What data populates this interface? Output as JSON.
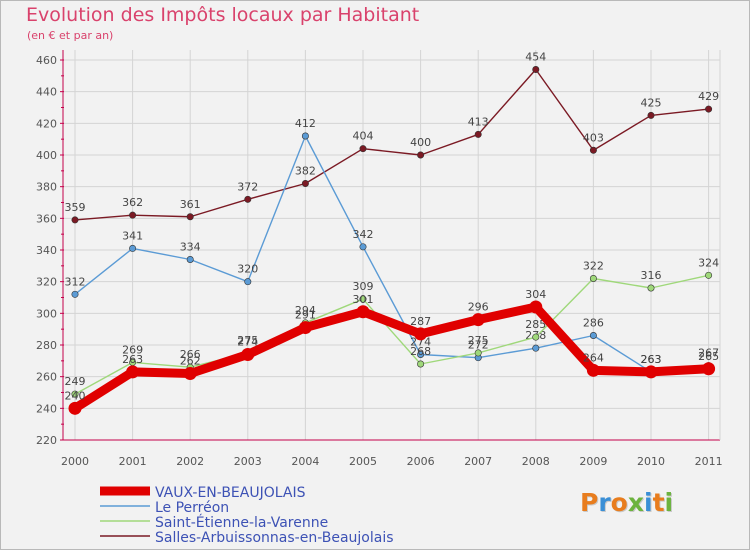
{
  "chart_data": {
    "type": "line",
    "title": "Evolution des Impôts locaux par Habitant",
    "subtitle": "(en € et par an)",
    "xlabel": "",
    "ylabel": "",
    "ylim": [
      220,
      460
    ],
    "yticks": [
      "220",
      "240",
      "260",
      "280",
      "300",
      "320",
      "340",
      "360",
      "380",
      "400",
      "420",
      "440",
      "460"
    ],
    "categories": [
      "2000",
      "2001",
      "2002",
      "2003",
      "2004",
      "2005",
      "2006",
      "2007",
      "2008",
      "2009",
      "2010",
      "2011"
    ],
    "grid": true,
    "legend_position": "bottom-left",
    "series": [
      {
        "name": "Salles-Arbuissonnas-en-Beaujolais",
        "color": "#7b1a24",
        "values": [
          359,
          362,
          361,
          372,
          382,
          404,
          400,
          413,
          454,
          403,
          425,
          429
        ],
        "labels": [
          "359",
          "362",
          "361",
          "372",
          "382",
          "404",
          "400",
          "413",
          "454",
          "403",
          "425",
          "429"
        ]
      },
      {
        "name": "Le Perréon",
        "color": "#5b9bd5",
        "values": [
          312,
          341,
          334,
          320,
          412,
          342,
          274,
          272,
          278,
          286,
          263,
          267
        ],
        "labels": [
          "312",
          "341",
          "334",
          "320",
          "412",
          "342",
          "274",
          "272",
          "278",
          "286",
          "263",
          "267"
        ]
      },
      {
        "name": "Saint-Étienne-la-Varenne",
        "color": "#9fd87a",
        "values": [
          249,
          269,
          266,
          275,
          294,
          309,
          268,
          275,
          285,
          322,
          316,
          324
        ],
        "labels": [
          "249",
          "269",
          "266",
          "275",
          "294",
          "309",
          "268",
          "275",
          "285",
          "322",
          "316",
          "324"
        ]
      },
      {
        "name": "VAUX-EN-BEAUJOLAIS",
        "color": "#e00000",
        "values": [
          240,
          263,
          262,
          274,
          291,
          301,
          287,
          296,
          304,
          264,
          263,
          265
        ],
        "labels": [
          "240",
          "263",
          "262",
          "274",
          "291",
          "301",
          "287",
          "296",
          "304",
          "264",
          "263",
          "265"
        ]
      }
    ],
    "legend": [
      {
        "name": "VAUX-EN-BEAUJOLAIS",
        "color": "#e00000",
        "style": "thick"
      },
      {
        "name": "Le Perréon",
        "color": "#5b9bd5",
        "style": "thin"
      },
      {
        "name": "Saint-Étienne-la-Varenne",
        "color": "#9fd87a",
        "style": "thin"
      },
      {
        "name": "Salles-Arbuissonnas-en-Beaujolais",
        "color": "#7b1a24",
        "style": "thin"
      }
    ]
  },
  "logo": {
    "letters": [
      "P",
      "r",
      "o",
      "x",
      "i",
      "t",
      "i"
    ],
    "colors": [
      "#e87d1e",
      "#3a8fd6",
      "#e87d1e",
      "#6cb33e",
      "#3a8fd6",
      "#e87d1e",
      "#6cb33e"
    ]
  }
}
